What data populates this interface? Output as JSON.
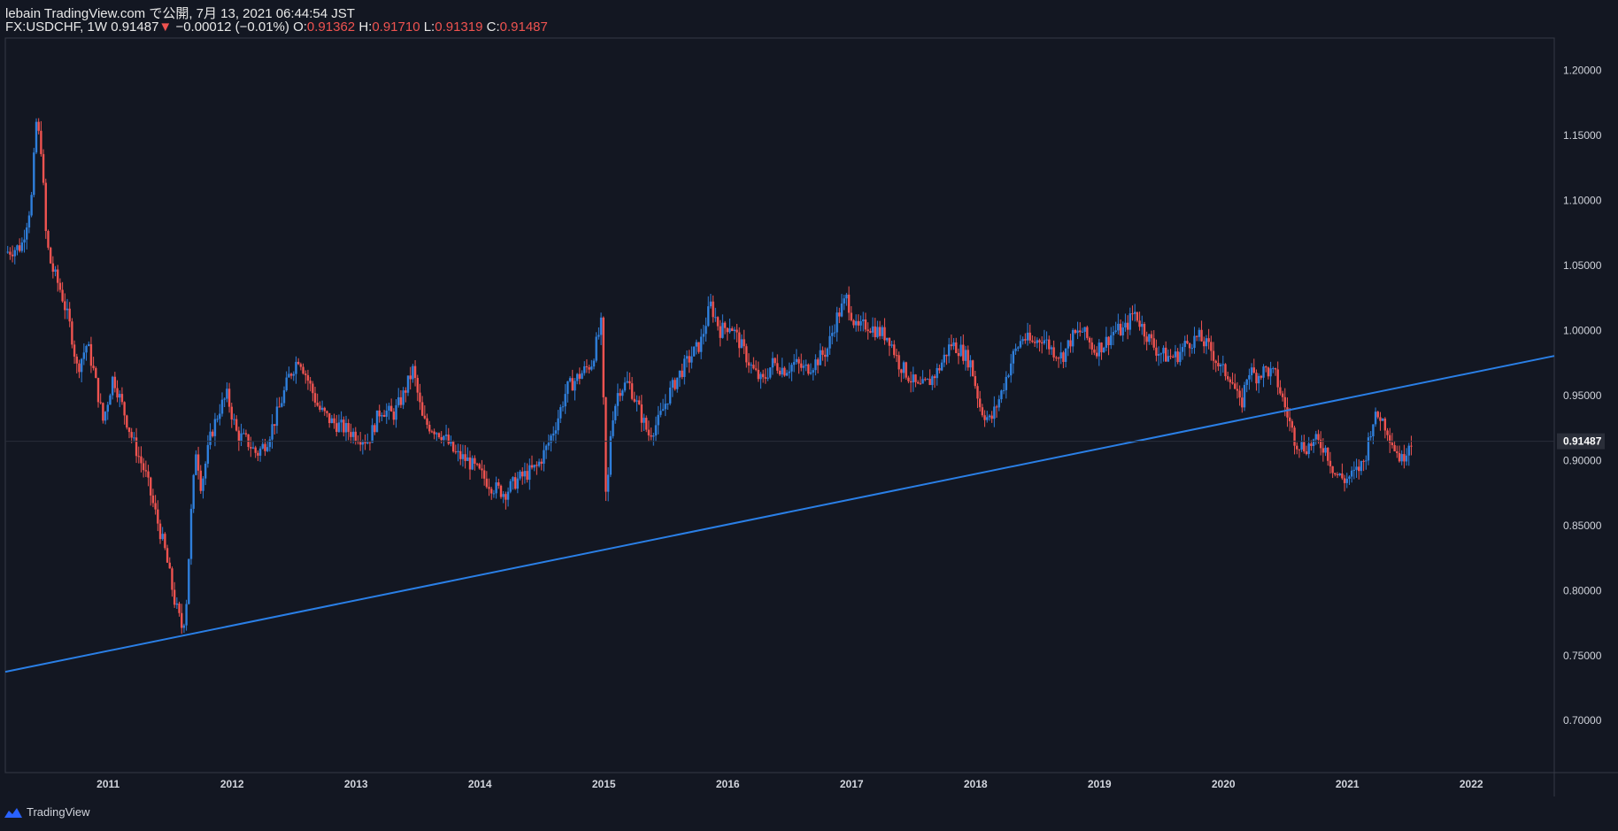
{
  "header": {
    "publish_line": "lebain TradingView.com で公開, 7月 13, 2021 06:44:54 JST",
    "symbol": "FX:USDCHF, 1W",
    "last": "0.91487",
    "change_arrow": "▼",
    "change": "−0.00012 (−0.01%)",
    "open_label": "O:",
    "open": "0.91362",
    "high_label": "H:",
    "high": "0.91710",
    "low_label": "L:",
    "low": "0.91319",
    "close_label": "C:",
    "close": "0.91487"
  },
  "footer": {
    "brand": "TradingView"
  },
  "colors": {
    "background": "#131722",
    "up": "#2f7fdc",
    "down": "#ef5350",
    "trendline": "#2a7fe6",
    "text": "#d1d4dc"
  },
  "chart_data": {
    "type": "candlestick",
    "y_axis_ticks": [
      "1.20000",
      "1.15000",
      "1.10000",
      "1.05000",
      "1.00000",
      "0.95000",
      "0.90000",
      "0.85000",
      "0.80000",
      "0.75000",
      "0.70000"
    ],
    "x_axis_ticks": [
      "2011",
      "2012",
      "2013",
      "2014",
      "2015",
      "2016",
      "2017",
      "2018",
      "2019",
      "2020",
      "2021",
      "2022"
    ],
    "ylim": [
      0.66,
      1.225
    ],
    "xlim": [
      2010.17,
      2022.67
    ],
    "current_price_label": "0.91487",
    "current_price": 0.91487,
    "series": [
      {
        "kind": "weekly-close-path",
        "points": [
          [
            2010.17,
            1.06
          ],
          [
            2010.3,
            1.065
          ],
          [
            2010.38,
            1.1
          ],
          [
            2010.42,
            1.16
          ],
          [
            2010.46,
            1.14
          ],
          [
            2010.5,
            1.07
          ],
          [
            2010.54,
            1.05
          ],
          [
            2010.62,
            1.03
          ],
          [
            2010.7,
            1.0
          ],
          [
            2010.75,
            0.97
          ],
          [
            2010.83,
            0.99
          ],
          [
            2010.88,
            0.97
          ],
          [
            2010.96,
            0.93
          ],
          [
            2011.04,
            0.965
          ],
          [
            2011.12,
            0.94
          ],
          [
            2011.2,
            0.915
          ],
          [
            2011.3,
            0.89
          ],
          [
            2011.38,
            0.86
          ],
          [
            2011.46,
            0.83
          ],
          [
            2011.54,
            0.79
          ],
          [
            2011.6,
            0.77
          ],
          [
            2011.63,
            0.79
          ],
          [
            2011.67,
            0.86
          ],
          [
            2011.71,
            0.91
          ],
          [
            2011.75,
            0.88
          ],
          [
            2011.79,
            0.9
          ],
          [
            2011.83,
            0.92
          ],
          [
            2011.9,
            0.94
          ],
          [
            2011.96,
            0.95
          ],
          [
            2012.04,
            0.92
          ],
          [
            2012.12,
            0.915
          ],
          [
            2012.2,
            0.905
          ],
          [
            2012.28,
            0.915
          ],
          [
            2012.38,
            0.94
          ],
          [
            2012.46,
            0.965
          ],
          [
            2012.54,
            0.98
          ],
          [
            2012.62,
            0.96
          ],
          [
            2012.7,
            0.94
          ],
          [
            2012.8,
            0.93
          ],
          [
            2012.9,
            0.925
          ],
          [
            2013.0,
            0.92
          ],
          [
            2013.1,
            0.915
          ],
          [
            2013.2,
            0.94
          ],
          [
            2013.3,
            0.935
          ],
          [
            2013.38,
            0.95
          ],
          [
            2013.46,
            0.97
          ],
          [
            2013.54,
            0.93
          ],
          [
            2013.62,
            0.925
          ],
          [
            2013.7,
            0.92
          ],
          [
            2013.8,
            0.905
          ],
          [
            2013.9,
            0.9
          ],
          [
            2014.0,
            0.89
          ],
          [
            2014.1,
            0.88
          ],
          [
            2014.2,
            0.875
          ],
          [
            2014.3,
            0.885
          ],
          [
            2014.38,
            0.89
          ],
          [
            2014.46,
            0.895
          ],
          [
            2014.54,
            0.91
          ],
          [
            2014.62,
            0.93
          ],
          [
            2014.7,
            0.955
          ],
          [
            2014.8,
            0.965
          ],
          [
            2014.9,
            0.975
          ],
          [
            2014.98,
            1.005
          ],
          [
            2015.02,
            0.86
          ],
          [
            2015.06,
            0.93
          ],
          [
            2015.12,
            0.955
          ],
          [
            2015.2,
            0.96
          ],
          [
            2015.28,
            0.94
          ],
          [
            2015.36,
            0.92
          ],
          [
            2015.44,
            0.93
          ],
          [
            2015.52,
            0.95
          ],
          [
            2015.6,
            0.965
          ],
          [
            2015.7,
            0.98
          ],
          [
            2015.78,
            0.99
          ],
          [
            2015.86,
            1.02
          ],
          [
            2015.94,
            1.0
          ],
          [
            2016.02,
            1.005
          ],
          [
            2016.1,
            0.99
          ],
          [
            2016.2,
            0.97
          ],
          [
            2016.28,
            0.96
          ],
          [
            2016.36,
            0.975
          ],
          [
            2016.46,
            0.97
          ],
          [
            2016.54,
            0.975
          ],
          [
            2016.62,
            0.97
          ],
          [
            2016.7,
            0.975
          ],
          [
            2016.8,
            0.985
          ],
          [
            2016.88,
            1.01
          ],
          [
            2016.96,
            1.025
          ],
          [
            2017.04,
            1.0
          ],
          [
            2017.12,
            1.005
          ],
          [
            2017.2,
            1.0
          ],
          [
            2017.3,
            0.995
          ],
          [
            2017.38,
            0.975
          ],
          [
            2017.46,
            0.965
          ],
          [
            2017.54,
            0.955
          ],
          [
            2017.62,
            0.96
          ],
          [
            2017.7,
            0.97
          ],
          [
            2017.8,
            0.99
          ],
          [
            2017.88,
            0.985
          ],
          [
            2017.96,
            0.975
          ],
          [
            2018.04,
            0.94
          ],
          [
            2018.12,
            0.93
          ],
          [
            2018.2,
            0.95
          ],
          [
            2018.3,
            0.98
          ],
          [
            2018.38,
            0.995
          ],
          [
            2018.46,
            0.99
          ],
          [
            2018.54,
            0.995
          ],
          [
            2018.62,
            0.985
          ],
          [
            2018.7,
            0.98
          ],
          [
            2018.78,
            0.995
          ],
          [
            2018.86,
            1.0
          ],
          [
            2018.96,
            0.985
          ],
          [
            2019.04,
            0.99
          ],
          [
            2019.12,
            1.0
          ],
          [
            2019.2,
            1.0
          ],
          [
            2019.28,
            1.015
          ],
          [
            2019.36,
            1.0
          ],
          [
            2019.46,
            0.985
          ],
          [
            2019.54,
            0.98
          ],
          [
            2019.62,
            0.98
          ],
          [
            2019.7,
            0.99
          ],
          [
            2019.8,
            0.995
          ],
          [
            2019.9,
            0.985
          ],
          [
            2019.98,
            0.97
          ],
          [
            2020.06,
            0.965
          ],
          [
            2020.14,
            0.94
          ],
          [
            2020.2,
            0.97
          ],
          [
            2020.26,
            0.965
          ],
          [
            2020.34,
            0.97
          ],
          [
            2020.42,
            0.965
          ],
          [
            2020.5,
            0.94
          ],
          [
            2020.58,
            0.915
          ],
          [
            2020.66,
            0.91
          ],
          [
            2020.74,
            0.915
          ],
          [
            2020.82,
            0.91
          ],
          [
            2020.9,
            0.89
          ],
          [
            2020.98,
            0.885
          ],
          [
            2021.06,
            0.89
          ],
          [
            2021.14,
            0.9
          ],
          [
            2021.2,
            0.93
          ],
          [
            2021.26,
            0.935
          ],
          [
            2021.32,
            0.925
          ],
          [
            2021.38,
            0.91
          ],
          [
            2021.44,
            0.9
          ],
          [
            2021.5,
            0.915
          ],
          [
            2021.53,
            0.91487
          ]
        ]
      }
    ],
    "trendline": {
      "from": [
        2010.17,
        0.7375
      ],
      "to": [
        2022.67,
        0.9805
      ]
    }
  }
}
